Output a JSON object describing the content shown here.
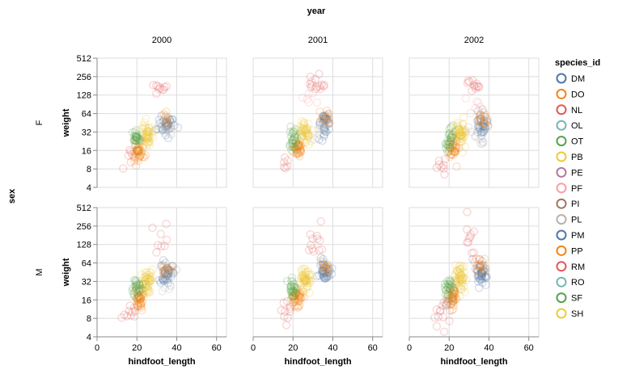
{
  "chart_data": {
    "type": "scatter",
    "title": "year",
    "row_title": "sex",
    "column_field": "year",
    "row_field": "sex",
    "columns": [
      "2000",
      "2001",
      "2002"
    ],
    "rows": [
      "F",
      "M"
    ],
    "x": {
      "label": "hindfoot_length",
      "domain": [
        0,
        65
      ],
      "ticks": [
        0,
        20,
        40,
        60
      ],
      "scale": "linear"
    },
    "y": {
      "label": "weight",
      "domain": [
        4,
        512
      ],
      "ticks": [
        4,
        8,
        16,
        32,
        64,
        128,
        256,
        512
      ],
      "scale": "log2"
    },
    "grid": true,
    "legend": {
      "title": "species_id",
      "placement": "right",
      "entries": [
        {
          "name": "DM",
          "color": "#4c78a8"
        },
        {
          "name": "DO",
          "color": "#f58518"
        },
        {
          "name": "NL",
          "color": "#e45756"
        },
        {
          "name": "OL",
          "color": "#72b7b2"
        },
        {
          "name": "OT",
          "color": "#54a24b"
        },
        {
          "name": "PB",
          "color": "#eeca3b"
        },
        {
          "name": "PE",
          "color": "#b279a2"
        },
        {
          "name": "PF",
          "color": "#ff9da6"
        },
        {
          "name": "PI",
          "color": "#9d755d"
        },
        {
          "name": "PL",
          "color": "#bab0ac"
        },
        {
          "name": "PM",
          "color": "#4c78a8"
        },
        {
          "name": "PP",
          "color": "#f58518"
        },
        {
          "name": "RM",
          "color": "#e45756"
        },
        {
          "name": "RO",
          "color": "#72b7b2"
        },
        {
          "name": "SF",
          "color": "#54a24b"
        },
        {
          "name": "SH",
          "color": "#eeca3b"
        }
      ]
    },
    "clusters": [
      {
        "row": "F",
        "col": "2000",
        "species": "DM",
        "hindfoot_length": 35,
        "weight": 43,
        "spread_x": 2,
        "spread_y": 0.25,
        "n": 35
      },
      {
        "row": "F",
        "col": "2000",
        "species": "DO",
        "hindfoot_length": 35,
        "weight": 48,
        "spread_x": 1.5,
        "spread_y": 0.2,
        "n": 10
      },
      {
        "row": "F",
        "col": "2000",
        "species": "PB",
        "hindfoot_length": 25,
        "weight": 30,
        "spread_x": 1.5,
        "spread_y": 0.3,
        "n": 45
      },
      {
        "row": "F",
        "col": "2000",
        "species": "PP",
        "hindfoot_length": 21,
        "weight": 16,
        "spread_x": 1.2,
        "spread_y": 0.25,
        "n": 40
      },
      {
        "row": "F",
        "col": "2000",
        "species": "OT",
        "hindfoot_length": 20,
        "weight": 24,
        "spread_x": 1,
        "spread_y": 0.25,
        "n": 25
      },
      {
        "row": "F",
        "col": "2000",
        "species": "NL",
        "hindfoot_length": 31,
        "weight": 175,
        "spread_x": 2,
        "spread_y": 0.1,
        "n": 10
      },
      {
        "row": "F",
        "col": "2000",
        "species": "PL",
        "hindfoot_length": 34,
        "weight": 36,
        "spread_x": 2,
        "spread_y": 0.2,
        "n": 8
      },
      {
        "row": "F",
        "col": "2000",
        "species": "RM",
        "hindfoot_length": 16,
        "weight": 12,
        "spread_x": 1.5,
        "spread_y": 0.3,
        "n": 6
      },
      {
        "row": "F",
        "col": "2001",
        "species": "DM",
        "hindfoot_length": 36,
        "weight": 44,
        "spread_x": 1.5,
        "spread_y": 0.25,
        "n": 35
      },
      {
        "row": "F",
        "col": "2001",
        "species": "DO",
        "hindfoot_length": 36,
        "weight": 52,
        "spread_x": 1.5,
        "spread_y": 0.2,
        "n": 12
      },
      {
        "row": "F",
        "col": "2001",
        "species": "PB",
        "hindfoot_length": 26,
        "weight": 31,
        "spread_x": 1.5,
        "spread_y": 0.25,
        "n": 45
      },
      {
        "row": "F",
        "col": "2001",
        "species": "PP",
        "hindfoot_length": 22,
        "weight": 17,
        "spread_x": 1.2,
        "spread_y": 0.2,
        "n": 35
      },
      {
        "row": "F",
        "col": "2001",
        "species": "OT",
        "hindfoot_length": 20,
        "weight": 24,
        "spread_x": 1,
        "spread_y": 0.25,
        "n": 25
      },
      {
        "row": "F",
        "col": "2001",
        "species": "NL",
        "hindfoot_length": 32,
        "weight": 190,
        "spread_x": 2,
        "spread_y": 0.2,
        "n": 14
      },
      {
        "row": "F",
        "col": "2001",
        "species": "RM",
        "hindfoot_length": 16,
        "weight": 9,
        "spread_x": 1,
        "spread_y": 0.2,
        "n": 6
      },
      {
        "row": "F",
        "col": "2001",
        "species": "PL",
        "hindfoot_length": 34,
        "weight": 28,
        "spread_x": 2,
        "spread_y": 0.3,
        "n": 8
      },
      {
        "row": "F",
        "col": "2001",
        "species": "PF",
        "hindfoot_length": 30,
        "weight": 110,
        "spread_x": 3,
        "spread_y": 0.4,
        "n": 6
      },
      {
        "row": "F",
        "col": "2002",
        "species": "DM",
        "hindfoot_length": 36,
        "weight": 44,
        "spread_x": 1.5,
        "spread_y": 0.25,
        "n": 35
      },
      {
        "row": "F",
        "col": "2002",
        "species": "DO",
        "hindfoot_length": 36,
        "weight": 52,
        "spread_x": 1.5,
        "spread_y": 0.2,
        "n": 15
      },
      {
        "row": "F",
        "col": "2002",
        "species": "PB",
        "hindfoot_length": 26,
        "weight": 32,
        "spread_x": 1.5,
        "spread_y": 0.3,
        "n": 50
      },
      {
        "row": "F",
        "col": "2002",
        "species": "PP",
        "hindfoot_length": 22,
        "weight": 17,
        "spread_x": 1.2,
        "spread_y": 0.25,
        "n": 35
      },
      {
        "row": "F",
        "col": "2002",
        "species": "OT",
        "hindfoot_length": 20,
        "weight": 24,
        "spread_x": 1,
        "spread_y": 0.25,
        "n": 25
      },
      {
        "row": "F",
        "col": "2002",
        "species": "NL",
        "hindfoot_length": 32,
        "weight": 185,
        "spread_x": 2,
        "spread_y": 0.15,
        "n": 12
      },
      {
        "row": "F",
        "col": "2002",
        "species": "RM",
        "hindfoot_length": 16,
        "weight": 10,
        "spread_x": 1.5,
        "spread_y": 0.3,
        "n": 8
      },
      {
        "row": "F",
        "col": "2002",
        "species": "PL",
        "hindfoot_length": 34,
        "weight": 28,
        "spread_x": 2,
        "spread_y": 0.3,
        "n": 8
      },
      {
        "row": "F",
        "col": "2002",
        "species": "PF",
        "hindfoot_length": 30,
        "weight": 90,
        "spread_x": 3,
        "spread_y": 0.4,
        "n": 6
      },
      {
        "row": "M",
        "col": "2000",
        "species": "DM",
        "hindfoot_length": 35,
        "weight": 46,
        "spread_x": 1.5,
        "spread_y": 0.25,
        "n": 40
      },
      {
        "row": "M",
        "col": "2000",
        "species": "DO",
        "hindfoot_length": 35,
        "weight": 50,
        "spread_x": 1.5,
        "spread_y": 0.2,
        "n": 12
      },
      {
        "row": "M",
        "col": "2000",
        "species": "PB",
        "hindfoot_length": 25,
        "weight": 32,
        "spread_x": 1.5,
        "spread_y": 0.3,
        "n": 50
      },
      {
        "row": "M",
        "col": "2000",
        "species": "PP",
        "hindfoot_length": 21,
        "weight": 16,
        "spread_x": 1.2,
        "spread_y": 0.25,
        "n": 40
      },
      {
        "row": "M",
        "col": "2000",
        "species": "OT",
        "hindfoot_length": 20,
        "weight": 24,
        "spread_x": 1,
        "spread_y": 0.25,
        "n": 25
      },
      {
        "row": "M",
        "col": "2000",
        "species": "NL",
        "hindfoot_length": 31,
        "weight": 180,
        "spread_x": 2,
        "spread_y": 0.4,
        "n": 8
      },
      {
        "row": "M",
        "col": "2000",
        "species": "RM",
        "hindfoot_length": 16,
        "weight": 10,
        "spread_x": 2,
        "spread_y": 0.3,
        "n": 10
      },
      {
        "row": "M",
        "col": "2000",
        "species": "PL",
        "hindfoot_length": 36,
        "weight": 30,
        "spread_x": 1.5,
        "spread_y": 0.3,
        "n": 8
      },
      {
        "row": "M",
        "col": "2001",
        "species": "DM",
        "hindfoot_length": 36,
        "weight": 46,
        "spread_x": 1.5,
        "spread_y": 0.25,
        "n": 40
      },
      {
        "row": "M",
        "col": "2001",
        "species": "DO",
        "hindfoot_length": 36,
        "weight": 52,
        "spread_x": 1.5,
        "spread_y": 0.2,
        "n": 12
      },
      {
        "row": "M",
        "col": "2001",
        "species": "PB",
        "hindfoot_length": 26,
        "weight": 34,
        "spread_x": 1.5,
        "spread_y": 0.3,
        "n": 50
      },
      {
        "row": "M",
        "col": "2001",
        "species": "PP",
        "hindfoot_length": 22,
        "weight": 17,
        "spread_x": 1.2,
        "spread_y": 0.25,
        "n": 40
      },
      {
        "row": "M",
        "col": "2001",
        "species": "OT",
        "hindfoot_length": 20,
        "weight": 24,
        "spread_x": 1,
        "spread_y": 0.25,
        "n": 25
      },
      {
        "row": "M",
        "col": "2001",
        "species": "NL",
        "hindfoot_length": 31,
        "weight": 160,
        "spread_x": 2,
        "spread_y": 0.5,
        "n": 12
      },
      {
        "row": "M",
        "col": "2001",
        "species": "RM",
        "hindfoot_length": 16,
        "weight": 10,
        "spread_x": 1.5,
        "spread_y": 0.3,
        "n": 10
      },
      {
        "row": "M",
        "col": "2002",
        "species": "DM",
        "hindfoot_length": 36,
        "weight": 46,
        "spread_x": 1.5,
        "spread_y": 0.25,
        "n": 40
      },
      {
        "row": "M",
        "col": "2002",
        "species": "DO",
        "hindfoot_length": 36,
        "weight": 54,
        "spread_x": 1.5,
        "spread_y": 0.2,
        "n": 15
      },
      {
        "row": "M",
        "col": "2002",
        "species": "PB",
        "hindfoot_length": 26,
        "weight": 36,
        "spread_x": 1.5,
        "spread_y": 0.3,
        "n": 50
      },
      {
        "row": "M",
        "col": "2002",
        "species": "PP",
        "hindfoot_length": 22,
        "weight": 17,
        "spread_x": 1.2,
        "spread_y": 0.25,
        "n": 40
      },
      {
        "row": "M",
        "col": "2002",
        "species": "OT",
        "hindfoot_length": 20,
        "weight": 24,
        "spread_x": 1,
        "spread_y": 0.25,
        "n": 25
      },
      {
        "row": "M",
        "col": "2002",
        "species": "NL",
        "hindfoot_length": 31,
        "weight": 160,
        "spread_x": 2,
        "spread_y": 0.5,
        "n": 12
      },
      {
        "row": "M",
        "col": "2002",
        "species": "RM",
        "hindfoot_length": 16,
        "weight": 10,
        "spread_x": 2,
        "spread_y": 0.3,
        "n": 12
      },
      {
        "row": "M",
        "col": "2002",
        "species": "PI",
        "hindfoot_length": 20,
        "weight": 13,
        "spread_x": 1.5,
        "spread_y": 0.2,
        "n": 6
      }
    ]
  }
}
